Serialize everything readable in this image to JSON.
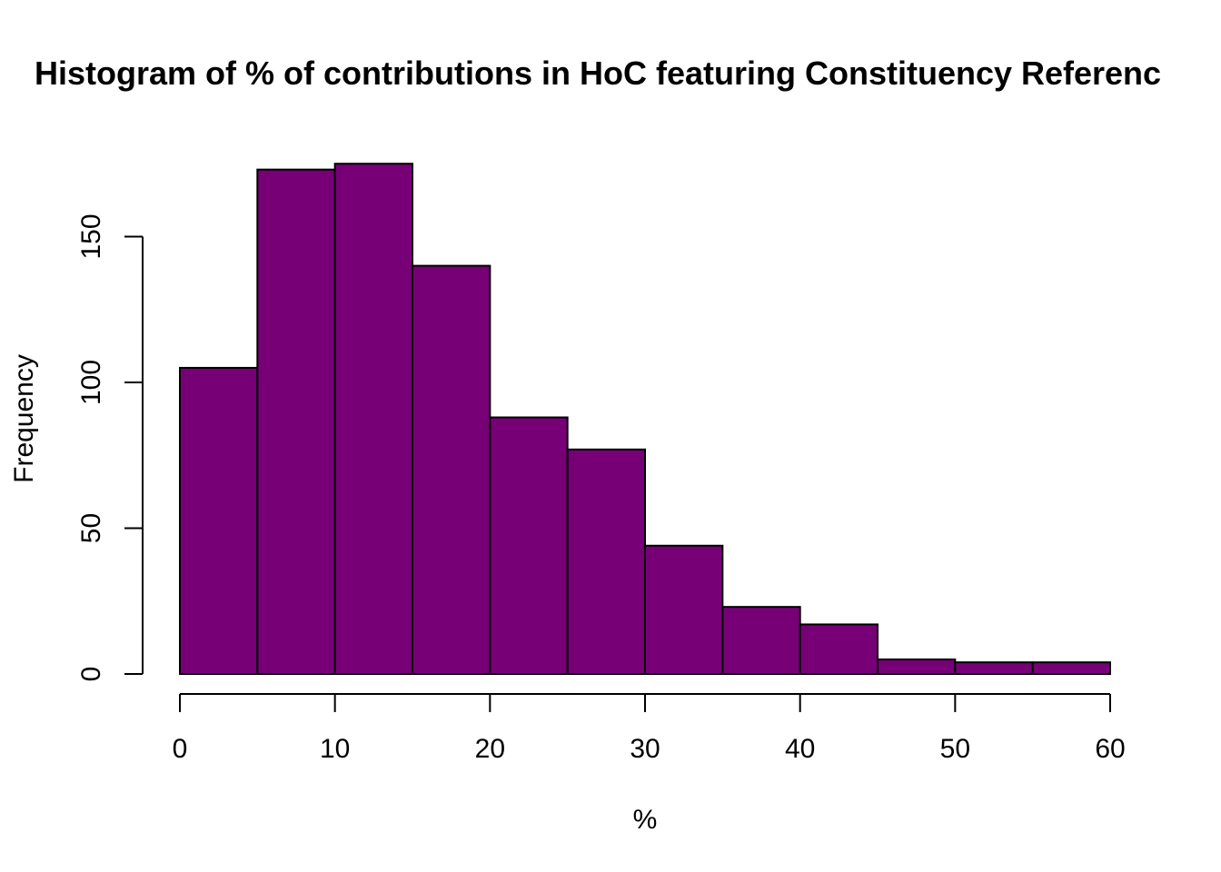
{
  "chart_data": {
    "type": "bar",
    "subtype": "histogram",
    "title": "Histogram of % of contributions in HoC featuring Constituency Referenc",
    "xlabel": "%",
    "ylabel": "Frequency",
    "bins": [
      {
        "from": 0,
        "to": 5,
        "count": 105
      },
      {
        "from": 5,
        "to": 10,
        "count": 173
      },
      {
        "from": 10,
        "to": 15,
        "count": 175
      },
      {
        "from": 15,
        "to": 20,
        "count": 140
      },
      {
        "from": 20,
        "to": 25,
        "count": 88
      },
      {
        "from": 25,
        "to": 30,
        "count": 77
      },
      {
        "from": 30,
        "to": 35,
        "count": 44
      },
      {
        "from": 35,
        "to": 40,
        "count": 23
      },
      {
        "from": 40,
        "to": 45,
        "count": 17
      },
      {
        "from": 45,
        "to": 50,
        "count": 5
      },
      {
        "from": 50,
        "to": 55,
        "count": 4
      },
      {
        "from": 55,
        "to": 60,
        "count": 4
      }
    ],
    "xlim": [
      0,
      60
    ],
    "ylim": [
      0,
      175
    ],
    "x_ticks": [
      "0",
      "10",
      "20",
      "30",
      "40",
      "50",
      "60"
    ],
    "y_ticks": [
      "0",
      "50",
      "100",
      "150"
    ],
    "grid": false,
    "legend": "none",
    "colors": {
      "bar_fill": "#770077",
      "bar_border": "#000000",
      "background": "#ffffff"
    }
  }
}
